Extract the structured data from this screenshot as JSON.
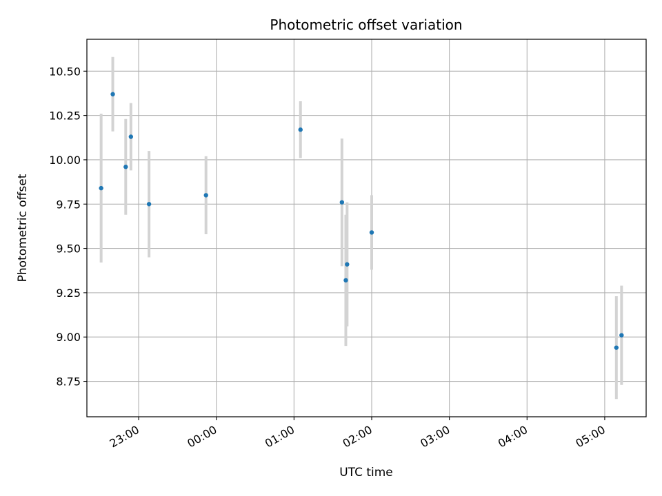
{
  "chart_data": {
    "type": "scatter",
    "title": "Photometric offset variation",
    "xlabel": "UTC time",
    "ylabel": "Photometric offset",
    "x_ticks": [
      "23:00",
      "00:00",
      "01:00",
      "02:00",
      "03:00",
      "04:00",
      "05:00"
    ],
    "y_ticks": [
      "8.75",
      "9.00",
      "9.25",
      "9.50",
      "9.75",
      "10.00",
      "10.25",
      "10.50"
    ],
    "xlim": [
      "22:20",
      "05:32"
    ],
    "ylim": [
      8.55,
      10.68
    ],
    "grid": true,
    "marker_color": "#1f77b4",
    "errorbar_color": "#d3d3d3",
    "points": [
      {
        "x": "22:31",
        "y": 9.84,
        "err": 0.42
      },
      {
        "x": "22:40",
        "y": 10.37,
        "err": 0.21
      },
      {
        "x": "22:50",
        "y": 9.96,
        "err": 0.27
      },
      {
        "x": "22:54",
        "y": 10.13,
        "err": 0.19
      },
      {
        "x": "23:08",
        "y": 9.75,
        "err": 0.3
      },
      {
        "x": "23:52",
        "y": 9.8,
        "err": 0.22
      },
      {
        "x": "01:05",
        "y": 10.17,
        "err": 0.16
      },
      {
        "x": "01:37",
        "y": 9.76,
        "err": 0.36
      },
      {
        "x": "01:40",
        "y": 9.32,
        "err": 0.37
      },
      {
        "x": "01:41",
        "y": 9.41,
        "err": 0.35
      },
      {
        "x": "02:00",
        "y": 9.59,
        "err": 0.21
      },
      {
        "x": "05:09",
        "y": 8.94,
        "err": 0.29
      },
      {
        "x": "05:13",
        "y": 9.01,
        "err": 0.28
      }
    ]
  }
}
